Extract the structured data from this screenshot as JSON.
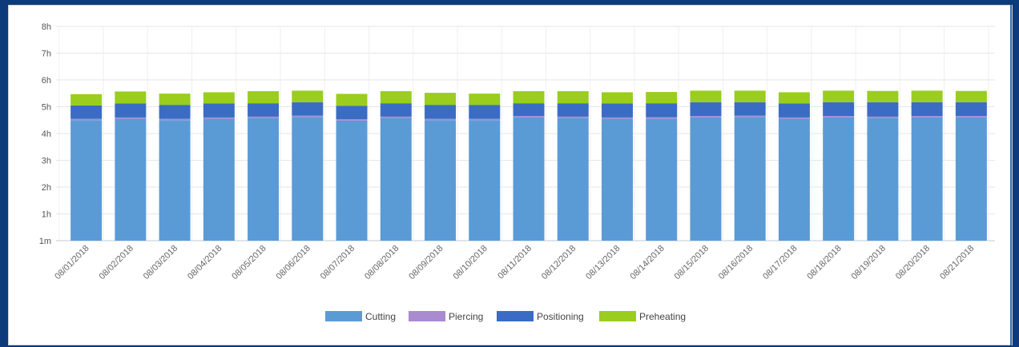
{
  "chart_data": {
    "type": "bar",
    "stacked": true,
    "title": "",
    "xlabel": "",
    "ylabel": "",
    "y_ticks": [
      "1m",
      "1h",
      "2h",
      "3h",
      "4h",
      "5h",
      "6h",
      "7h",
      "8h"
    ],
    "ylim": [
      0,
      8
    ],
    "grid": true,
    "legend_position": "bottom",
    "categories": [
      "08/01/2018",
      "08/02/2018",
      "08/03/2018",
      "08/04/2018",
      "08/05/2018",
      "08/06/2018",
      "08/07/2018",
      "08/08/2018",
      "08/09/2018",
      "08/10/2018",
      "08/11/2018",
      "08/12/2018",
      "08/13/2018",
      "08/14/2018",
      "08/15/2018",
      "08/16/2018",
      "08/17/2018",
      "08/18/2018",
      "08/19/2018",
      "08/20/2018",
      "08/21/2018"
    ],
    "series": [
      {
        "name": "Cutting",
        "color": "#5b9bd5",
        "values": [
          4.5,
          4.55,
          4.5,
          4.55,
          4.58,
          4.62,
          4.48,
          4.58,
          4.5,
          4.5,
          4.6,
          4.58,
          4.55,
          4.56,
          4.6,
          4.62,
          4.55,
          4.6,
          4.58,
          4.6,
          4.6
        ]
      },
      {
        "name": "Piercing",
        "color": "#a98bd0",
        "values": [
          0.05,
          0.05,
          0.05,
          0.05,
          0.05,
          0.05,
          0.05,
          0.05,
          0.05,
          0.05,
          0.05,
          0.05,
          0.05,
          0.05,
          0.05,
          0.05,
          0.05,
          0.05,
          0.05,
          0.05,
          0.05
        ]
      },
      {
        "name": "Positioning",
        "color": "#3a6cc4",
        "values": [
          0.5,
          0.52,
          0.52,
          0.52,
          0.5,
          0.5,
          0.5,
          0.5,
          0.52,
          0.52,
          0.48,
          0.5,
          0.52,
          0.52,
          0.52,
          0.5,
          0.52,
          0.52,
          0.54,
          0.52,
          0.52
        ]
      },
      {
        "name": "Preheating",
        "color": "#9acd1e",
        "values": [
          0.42,
          0.45,
          0.42,
          0.42,
          0.45,
          0.43,
          0.45,
          0.45,
          0.45,
          0.42,
          0.45,
          0.45,
          0.42,
          0.42,
          0.43,
          0.43,
          0.42,
          0.43,
          0.42,
          0.43,
          0.42
        ]
      }
    ]
  }
}
